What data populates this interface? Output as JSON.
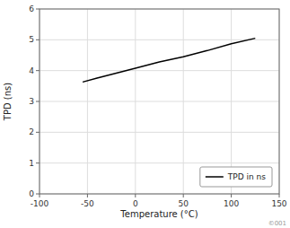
{
  "chart_data": {
    "type": "line",
    "x": [
      -55,
      -40,
      -20,
      0,
      25,
      50,
      75,
      100,
      125
    ],
    "series": [
      {
        "name": "TPD in ns",
        "color": "#000000",
        "values": [
          3.63,
          3.76,
          3.92,
          4.08,
          4.28,
          4.45,
          4.65,
          4.87,
          5.05
        ]
      }
    ],
    "x_label": "Temperature (°C)",
    "y_label": "TPD (ns)",
    "xlim": [
      -100,
      150
    ],
    "ylim": [
      0,
      6
    ],
    "xticks": [
      -100,
      -50,
      0,
      50,
      100,
      150
    ],
    "yticks": [
      0,
      1,
      2,
      3,
      4,
      5,
      6
    ],
    "grid": true,
    "legend": "lower right",
    "annotations": [
      "©001"
    ]
  }
}
